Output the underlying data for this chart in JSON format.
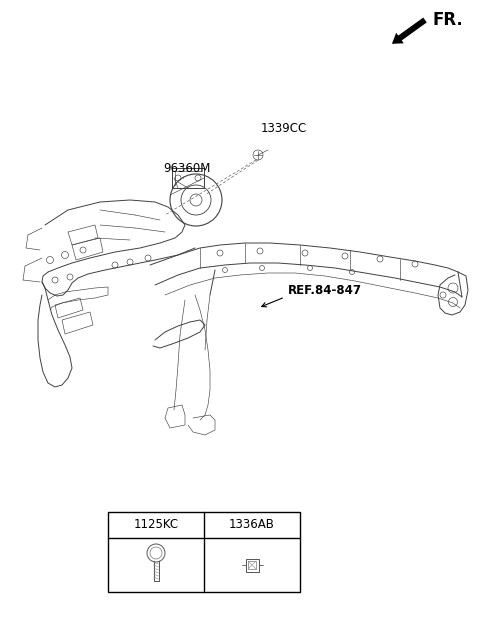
{
  "bg_color": "#ffffff",
  "fr_label": "FR.",
  "label_96360M": "96360M",
  "label_1339CC": "1339CC",
  "label_REF84847": "REF.84-847",
  "label_1125KC": "1125KC",
  "label_1336AB": "1336AB",
  "part_font_size": 8.5,
  "fr_font_size": 12,
  "line_color": "#404040",
  "dash_color": "#606060",
  "lw_main": 0.7,
  "lw_thin": 0.45,
  "lw_dashed": 0.5
}
